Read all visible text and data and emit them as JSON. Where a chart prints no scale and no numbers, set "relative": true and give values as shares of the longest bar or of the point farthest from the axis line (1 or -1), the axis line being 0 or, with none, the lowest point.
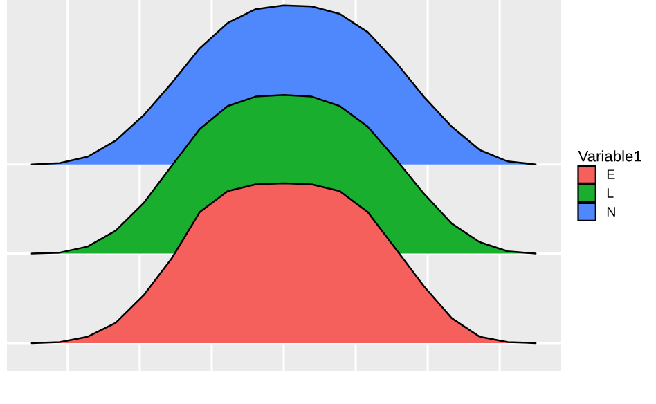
{
  "chart_data": {
    "type": "area",
    "relative": true,
    "legend_title": "Variable1",
    "legend": "right",
    "grid": true,
    "tick_labels": false,
    "categories": [
      null,
      null,
      null,
      null,
      null,
      null,
      null,
      null,
      null,
      null,
      null,
      null,
      null,
      null,
      null,
      null,
      null,
      null,
      null
    ],
    "series": [
      {
        "name": "E",
        "color": "#f5605c",
        "values": [
          0,
          0.003,
          0.019,
          0.06,
          0.142,
          0.251,
          0.388,
          0.45,
          0.47,
          0.473,
          0.47,
          0.45,
          0.388,
          0.279,
          0.169,
          0.074,
          0.019,
          0.003,
          0
        ]
      },
      {
        "name": "L",
        "color": "#1aae2f",
        "values": [
          0.265,
          0.268,
          0.286,
          0.333,
          0.415,
          0.525,
          0.634,
          0.702,
          0.73,
          0.735,
          0.73,
          0.702,
          0.641,
          0.545,
          0.443,
          0.354,
          0.299,
          0.272,
          0.265
        ]
      },
      {
        "name": "N",
        "color": "#4f88fd",
        "values": [
          0.529,
          0.533,
          0.552,
          0.6,
          0.675,
          0.77,
          0.873,
          0.948,
          0.989,
          1,
          0.997,
          0.975,
          0.921,
          0.832,
          0.73,
          0.641,
          0.572,
          0.538,
          0.529
        ]
      }
    ]
  }
}
